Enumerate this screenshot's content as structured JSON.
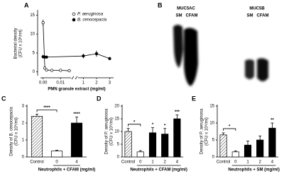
{
  "chart_data": [
    {
      "type": "line",
      "panel_label": "A",
      "ylabel": [
        "Bacterial density",
        "(CFU x 10⁶/ml)"
      ],
      "xlabel": "PMN granule extract (mg/ml)",
      "xlim": [
        [
          -0.0015,
          0.016
        ],
        [
          0.6,
          3.3
        ]
      ],
      "ylim": [
        -1,
        16
      ],
      "yticks": [
        0,
        5,
        10,
        15
      ],
      "xticks": [
        {
          "value": 0,
          "label": "0.00"
        },
        {
          "value": 0.01,
          "label": "0.01"
        },
        1,
        2,
        3
      ],
      "series": [
        {
          "name": "P. aeruginosa",
          "marker": "open",
          "color": "#000000",
          "x": [
            0,
            0.001,
            0.002,
            0.005,
            0.01,
            0.015
          ],
          "values": [
            13,
            1,
            0.5,
            0.4,
            0.4,
            0.3
          ],
          "errors": [
            0.8,
            0.3,
            0.2,
            0.2,
            0.2,
            0.2
          ]
        },
        {
          "name": "B. cenocepacia",
          "marker": "filled",
          "color": "#000000",
          "x": [
            0,
            0.001,
            0.002,
            1,
            2,
            3
          ],
          "values": [
            4,
            3.9,
            3.9,
            4.2,
            4.8,
            3.5
          ],
          "errors": [
            0.5,
            0.3,
            0.3,
            0.6,
            0.8,
            0.4
          ]
        }
      ]
    },
    {
      "type": "blot",
      "panel_label": "B",
      "groups": [
        {
          "name": "MUC5AC",
          "lanes": [
            "SM",
            "CFAM"
          ]
        },
        {
          "name": "MUC5B",
          "lanes": [
            "SM",
            "CFAM"
          ]
        }
      ]
    },
    {
      "type": "bar",
      "panel_label": "C",
      "ylabel": [
        "Density of B. cenocepacia",
        "(CFU x 10⁶/ml)"
      ],
      "categories": [
        "Control",
        "0",
        "4"
      ],
      "group_label": "Neutrophils + CFAM (mg/ml)",
      "values": [
        2.4,
        0.35,
        2.0
      ],
      "errors": [
        0.12,
        0.05,
        0.35
      ],
      "fills": [
        "hatch",
        "#ffffff",
        "#000000"
      ],
      "ylim": [
        0,
        3
      ],
      "yticks": [
        0,
        1,
        2,
        3
      ],
      "significance": [
        {
          "label": "****",
          "from": 0,
          "to": 1
        },
        {
          "label": "****",
          "at": 2
        }
      ]
    },
    {
      "type": "bar",
      "panel_label": "D",
      "ylabel": [
        "Density of P. aeruginosa",
        "(CFU x 10⁶/ml)"
      ],
      "categories": [
        "Control",
        "0",
        "1",
        "2",
        "4"
      ],
      "group_label": "Neutrophils + CFAM (mg/ml)",
      "values": [
        10,
        2,
        9.5,
        9,
        15
      ],
      "errors": [
        1.2,
        0.5,
        2,
        2.2,
        1.5
      ],
      "fills": [
        "hatch",
        "#ffffff",
        "#000000",
        "#000000",
        "#000000"
      ],
      "ylim": [
        0,
        20
      ],
      "yticks": [
        0,
        5,
        10,
        15,
        20
      ],
      "significance": [
        {
          "label": "*",
          "from": 0,
          "to": 1
        },
        {
          "label": "*",
          "at": 2
        },
        {
          "label": "*",
          "at": 3
        },
        {
          "label": "***",
          "at": 4
        }
      ]
    },
    {
      "type": "bar",
      "panel_label": "E",
      "ylabel": [
        "Density of P. aeruginosa",
        "(CFU x 10⁶/ml)"
      ],
      "categories": [
        "Control",
        "0",
        "1",
        "2",
        "4"
      ],
      "group_label": "Neutrophils + SM (mg/ml)",
      "values": [
        6.5,
        1.5,
        3.5,
        5,
        8.5
      ],
      "errors": [
        0.6,
        0.3,
        1.2,
        1.2,
        1.5
      ],
      "fills": [
        "hatch",
        "#ffffff",
        "#000000",
        "#000000",
        "#000000"
      ],
      "ylim": [
        0,
        15
      ],
      "yticks": [
        0,
        5,
        10,
        15
      ],
      "significance": [
        {
          "label": "*",
          "from": 0,
          "to": 1
        },
        {
          "label": "**",
          "at": 4
        }
      ]
    }
  ]
}
